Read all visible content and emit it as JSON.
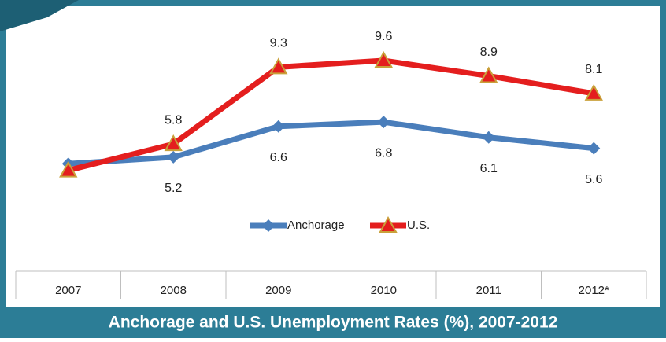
{
  "chart_data": {
    "type": "line",
    "title": "Anchorage and U.S. Unemployment Rates (%), 2007-2012",
    "categories": [
      "2007",
      "2008",
      "2009",
      "2010",
      "2011",
      "2012*"
    ],
    "series": [
      {
        "name": "Anchorage",
        "color": "#4a7ebb",
        "marker": "diamond",
        "values": [
          4.9,
          5.2,
          6.6,
          6.8,
          6.1,
          5.6
        ]
      },
      {
        "name": "U.S.",
        "color": "#e41e1e",
        "marker": "triangle",
        "values": [
          4.6,
          5.8,
          9.3,
          9.6,
          8.9,
          8.1
        ]
      }
    ],
    "ylim": [
      0,
      12
    ],
    "legend": "bottom"
  }
}
